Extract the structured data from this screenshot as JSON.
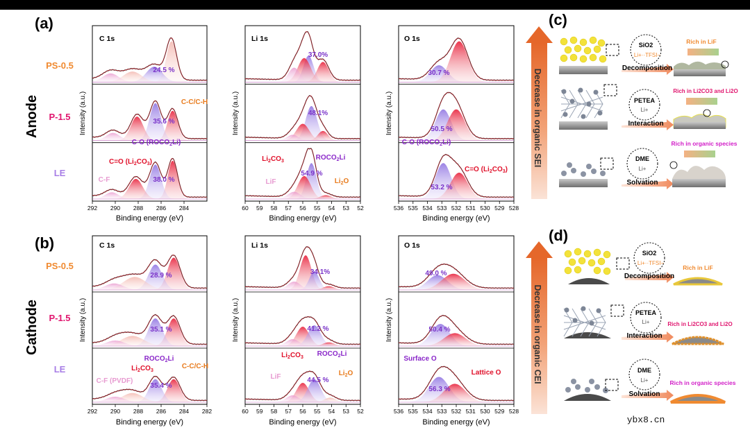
{
  "panels": {
    "anode_label": "(a)",
    "cathode_label": "(b)",
    "scheme_anode_label": "(c)",
    "scheme_cathode_label": "(d)"
  },
  "rows": {
    "anode": "Anode",
    "cathode": "Cathode"
  },
  "samples": [
    {
      "name": "PS-0.5",
      "color": "#f08a30"
    },
    {
      "name": "P-1.5",
      "color": "#e0156e"
    },
    {
      "name": "LE",
      "color": "#a77de6"
    }
  ],
  "arrows": {
    "anode": "Decrease in organic SEI",
    "cathode": "Decrease in organic CEI"
  },
  "watermark": "ybx8.cn",
  "scheme": {
    "anode": {
      "label_PS": "Rich in LiF",
      "label_P": "Rich in Li2CO3 and Li2O",
      "label_LE": "Rich in organic species",
      "step_PS": "Decomposition",
      "step_P": "Interaction",
      "step_LE": "Solvation",
      "bubble_PS": "SiO2",
      "bubble_PS_sub": "Li+··TFSI−",
      "bubble_P": "PETEA",
      "bubble_P_sub": "Li+",
      "bubble_LE": "DME",
      "bubble_LE_sub": "Li+"
    },
    "cathode": {
      "label_PS": "Rich in LiF",
      "label_P": "Rich in Li2CO3 and Li2O",
      "label_LE": "Rich in organic species",
      "step_PS": "Decomposition",
      "step_P": "Interaction",
      "step_LE": "Solvation",
      "bubble_PS": "SiO2",
      "bubble_PS_sub": "Li+··TFSI−",
      "bubble_P": "PETEA",
      "bubble_P_sub": "Li+",
      "bubble_LE": "DME",
      "bubble_LE_sub": "Li+"
    }
  },
  "chart_data": [
    {
      "type": "line",
      "id": "anode_C1s",
      "title": "C 1s",
      "xlabel": "Binding energy (eV)",
      "ylabel": "Intensity (a.u.)",
      "xlim": [
        292,
        282
      ],
      "xticks": [
        292,
        290,
        288,
        286,
        284
      ],
      "tick_labels": [
        "292",
        "290",
        "288",
        "286",
        "284"
      ],
      "stacks": [
        "PS-0.5",
        "P-1.5",
        "LE"
      ],
      "percents": [
        "24.5 %",
        "35.6 %",
        "38.0 %"
      ],
      "annotations": [
        "C-C/C-H",
        "C-O (ROCO2Li)",
        "C=O (Li2CO3)",
        "C-F"
      ],
      "peaks": [
        {
          "name": "C-C/C-H",
          "center": 285.0
        },
        {
          "name": "C-O (ROCO2Li)",
          "center": 286.5
        },
        {
          "name": "C=O (Li2CO3)",
          "center": 288.2
        },
        {
          "name": "C-F",
          "center": 290.3
        }
      ]
    },
    {
      "type": "line",
      "id": "anode_Li1s",
      "title": "Li 1s",
      "xlabel": "Binding energy (eV)",
      "ylabel": "Intensity (a.u.)",
      "xlim": [
        60,
        52
      ],
      "xticks": [
        60,
        59,
        58,
        57,
        56,
        55,
        54,
        53,
        52
      ],
      "tick_labels": [
        "60",
        "59",
        "58",
        "57",
        "56",
        "55",
        "54",
        "53",
        "52"
      ],
      "stacks": [
        "PS-0.5",
        "P-1.5",
        "LE"
      ],
      "percents": [
        "37.0%",
        "48.1%",
        "54.9 %"
      ],
      "annotations": [
        "Li2CO3",
        "ROCO2Li",
        "LiF",
        "Li2O"
      ],
      "peaks": [
        {
          "name": "ROCO2Li",
          "center": 55.4
        },
        {
          "name": "Li2CO3",
          "center": 55.9
        },
        {
          "name": "LiF",
          "center": 56.6
        },
        {
          "name": "Li2O",
          "center": 54.5
        }
      ]
    },
    {
      "type": "line",
      "id": "anode_O1s",
      "title": "O 1s",
      "xlabel": "Binding energy (eV)",
      "ylabel": "Intensity (a.u.)",
      "xlim": [
        536,
        528
      ],
      "xticks": [
        536,
        535,
        534,
        533,
        532,
        531,
        530,
        529,
        528
      ],
      "tick_labels": [
        "536",
        "535",
        "534",
        "533",
        "532",
        "531",
        "530",
        "529",
        "528"
      ],
      "stacks": [
        "PS-0.5",
        "P-1.5",
        "LE"
      ],
      "percents": [
        "30.7 %",
        "50.5 %",
        "53.2 %"
      ],
      "annotations": [
        "C-O (ROCO2Li)",
        "C=O (Li2CO3)"
      ],
      "peaks": [
        {
          "name": "C-O (ROCO2Li)",
          "center": 533.0
        },
        {
          "name": "C=O (Li2CO3)",
          "center": 531.9
        }
      ]
    },
    {
      "type": "line",
      "id": "cathode_C1s",
      "title": "C 1s",
      "xlabel": "Binding energy (eV)",
      "ylabel": "Intensity (a.u.)",
      "xlim": [
        292,
        282
      ],
      "xticks": [
        292,
        290,
        288,
        286,
        284,
        282
      ],
      "tick_labels": [
        "292",
        "290",
        "288",
        "286",
        "284",
        "282"
      ],
      "stacks": [
        "PS-0.5",
        "P-1.5",
        "LE"
      ],
      "percents": [
        "28.9 %",
        "35.1 %",
        "35.4 %"
      ],
      "annotations": [
        "ROCO2Li",
        "Li2CO3",
        "C-C/C-H",
        "C-F (PVDF)"
      ],
      "peaks": [
        {
          "name": "C-C/C-H",
          "center": 284.9
        },
        {
          "name": "ROCO2Li",
          "center": 286.5
        },
        {
          "name": "Li2CO3",
          "center": 288.5
        },
        {
          "name": "C-F (PVDF)",
          "center": 290.0
        }
      ]
    },
    {
      "type": "line",
      "id": "cathode_Li1s",
      "title": "Li 1s",
      "xlabel": "Binding energy (eV)",
      "ylabel": "Intensity (a.u.)",
      "xlim": [
        60,
        52
      ],
      "xticks": [
        60,
        59,
        58,
        57,
        56,
        55,
        54,
        53,
        52
      ],
      "tick_labels": [
        "60",
        "59",
        "58",
        "57",
        "56",
        "55",
        "54",
        "53",
        "52"
      ],
      "stacks": [
        "PS-0.5",
        "P-1.5",
        "LE"
      ],
      "percents": [
        "34.1%",
        "41.2 %",
        "44.5 %"
      ],
      "annotations": [
        "Li2CO3",
        "ROCO2Li",
        "LiF",
        "Li2O"
      ],
      "peaks": [
        {
          "name": "ROCO2Li",
          "center": 55.2
        },
        {
          "name": "Li2CO3",
          "center": 55.9
        },
        {
          "name": "LiF",
          "center": 56.6
        },
        {
          "name": "Li2O",
          "center": 54.2
        }
      ]
    },
    {
      "type": "line",
      "id": "cathode_O1s",
      "title": "O 1s",
      "xlabel": "Binding energy (eV)",
      "ylabel": "Intensity (a.u.)",
      "xlim": [
        536,
        528
      ],
      "xticks": [
        536,
        535,
        534,
        533,
        532,
        531,
        530,
        529,
        528
      ],
      "tick_labels": [
        "536",
        "535",
        "534",
        "533",
        "532",
        "531",
        "530",
        "529",
        "528"
      ],
      "stacks": [
        "PS-0.5",
        "P-1.5",
        "LE"
      ],
      "percents": [
        "49.0 %",
        "50.4 %",
        "56.3 %"
      ],
      "annotations": [
        "Surface O",
        "Lattice O"
      ],
      "peaks": [
        {
          "name": "Surface O",
          "center": 533.2
        },
        {
          "name": "Lattice O",
          "center": 532.2
        }
      ]
    }
  ]
}
